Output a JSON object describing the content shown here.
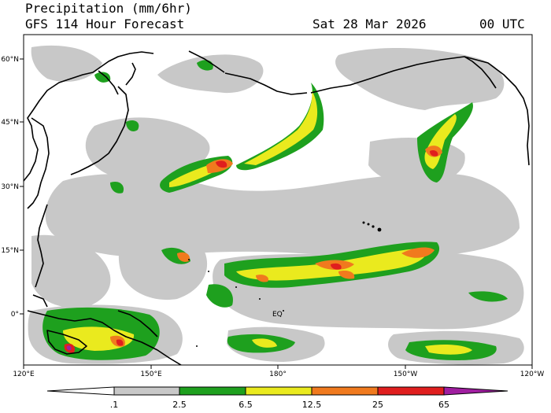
{
  "header": {
    "title": "Precipitation (mm/6hr)",
    "subtitle": "GFS 114 Hour Forecast",
    "valid_date": "Sat 28 Mar 2026",
    "valid_time": "00 UTC"
  },
  "map": {
    "lon_labels": [
      "120°E",
      "150°E",
      "180°",
      "150°W",
      "120°W"
    ],
    "lat_labels": [
      "60°N",
      "45°N",
      "30°N",
      "15°N",
      "0°"
    ],
    "eq_label": "EQ"
  },
  "colorbar": {
    "ticks": [
      ".1",
      "2.5",
      "6.5",
      "12.5",
      "25",
      "65"
    ],
    "colors": {
      "none": "#ffffff",
      "light": "#c8c8c8",
      "green": "#1ea01e",
      "yellow": "#eaea1e",
      "orange": "#f07a1e",
      "red": "#e01e1e",
      "purple": "#a01ea0"
    }
  }
}
